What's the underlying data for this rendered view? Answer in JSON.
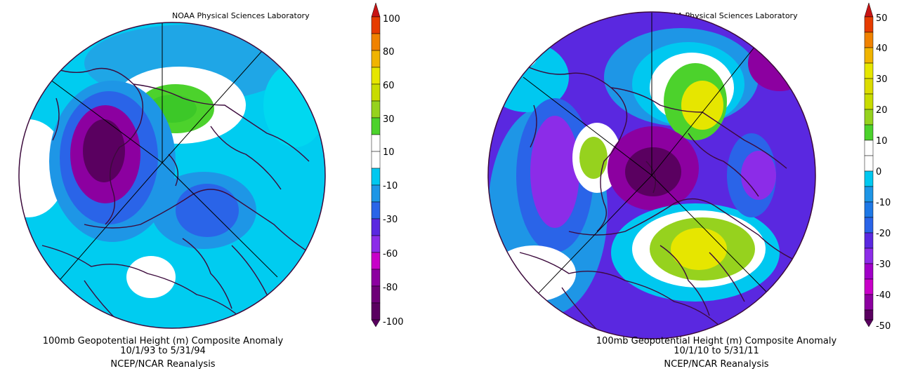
{
  "panels": [
    {
      "credit": "NOAA Physical Sciences Laboratory",
      "colorbar_labels": [
        "100",
        "80",
        "60",
        "30",
        "10",
        "-10",
        "-30",
        "-60",
        "-80",
        "-100"
      ],
      "caption_line1": "100mb Geopotential Height (m) Composite Anomaly",
      "caption_line2": "10/1/93  to 5/31/94",
      "caption_line3": "NCEP/NCAR Reanalysis"
    },
    {
      "credit": "NOAA Physical Sciences Laboratory",
      "colorbar_labels": [
        "50",
        "40",
        "30",
        "20",
        "10",
        "0",
        "-10",
        "-20",
        "-30",
        "-40",
        "-50"
      ],
      "caption_line1": "100mb Geopotential Height (m) Composite Anomaly",
      "caption_line2": "10/1/10  to 5/31/11",
      "caption_line3": "NCEP/NCAR Reanalysis"
    }
  ],
  "colors": {
    "scale": [
      "#5a0060",
      "#8c00a0",
      "#c800c8",
      "#8c2ce8",
      "#5a28e0",
      "#2a64e8",
      "#1e96e6",
      "#00c8f0",
      "#ffffff",
      "#ffffff",
      "#4cd22c",
      "#96d21e",
      "#e6e600",
      "#f0b400",
      "#f08200",
      "#e63c00",
      "#c81414"
    ],
    "coast": "#3c0a3c"
  }
}
